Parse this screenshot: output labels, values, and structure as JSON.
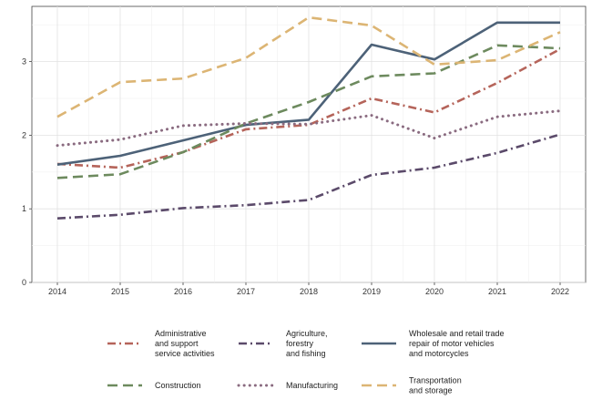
{
  "chart_data": {
    "type": "line",
    "title": "",
    "xlabel": "",
    "ylabel": "",
    "x": [
      2014,
      2015,
      2016,
      2017,
      2018,
      2019,
      2020,
      2021,
      2022
    ],
    "ylim": [
      0,
      3.75
    ],
    "yticks": [
      0,
      1,
      2,
      3
    ],
    "grid": true,
    "legend_position": "bottom",
    "series": [
      {
        "key": "admin",
        "name": [
          "Administrative",
          "and support",
          "service activities"
        ],
        "values": [
          1.61,
          1.56,
          1.77,
          2.08,
          2.14,
          2.5,
          2.31,
          2.71,
          3.17
        ],
        "color": "#b5645a",
        "style": "dashdot"
      },
      {
        "key": "agri",
        "name": [
          "Agriculture,",
          "forestry",
          "and fishing"
        ],
        "values": [
          0.87,
          0.92,
          1.01,
          1.05,
          1.12,
          1.46,
          1.56,
          1.76,
          2.01
        ],
        "color": "#5b4a6a",
        "style": "dashdot"
      },
      {
        "key": "wholesale",
        "name": [
          "Wholesale and retail trade",
          "repair of motor vehicles",
          "and motorcycles"
        ],
        "values": [
          1.6,
          1.72,
          1.93,
          2.14,
          2.21,
          3.23,
          3.03,
          3.53,
          3.53
        ],
        "color": "#4d6278",
        "style": "solid"
      },
      {
        "key": "construction",
        "name": [
          "Construction"
        ],
        "values": [
          1.42,
          1.47,
          1.77,
          2.16,
          2.45,
          2.8,
          2.84,
          3.22,
          3.18
        ],
        "color": "#6d8a5e",
        "style": "dashed"
      },
      {
        "key": "manufacturing",
        "name": [
          "Manufacturing"
        ],
        "values": [
          1.86,
          1.94,
          2.13,
          2.16,
          2.15,
          2.27,
          1.96,
          2.25,
          2.33
        ],
        "color": "#8a6b80",
        "style": "dotted"
      },
      {
        "key": "transport",
        "name": [
          "Transportation",
          "and storage"
        ],
        "values": [
          2.25,
          2.72,
          2.77,
          3.05,
          3.6,
          3.49,
          2.96,
          3.02,
          3.4
        ],
        "color": "#dcb574",
        "style": "dashed"
      }
    ]
  }
}
